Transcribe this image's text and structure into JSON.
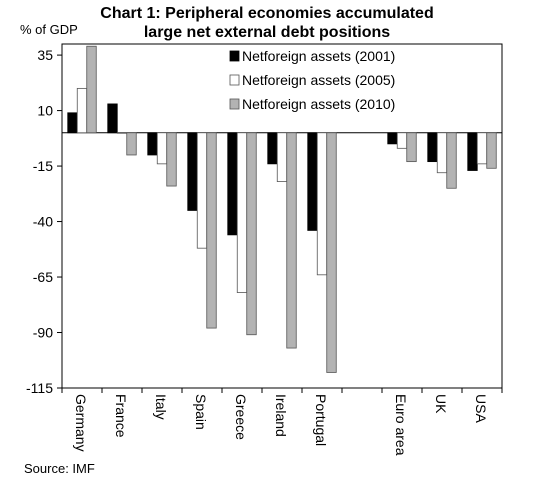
{
  "title_line1": "Chart 1: Peripheral economies accumulated",
  "title_line2": "large net external  debt positions",
  "y_unit": "% of GDP",
  "source": "Source: IMF",
  "chart_data": {
    "type": "bar",
    "title": "Chart 1: Peripheral economies accumulated large net external debt positions",
    "ylabel": "% of GDP",
    "xlabel": "",
    "ylim": [
      -115,
      40
    ],
    "yticks": [
      35,
      10,
      -15,
      -40,
      -65,
      -90,
      -115
    ],
    "grid": false,
    "legend_position": "top-right",
    "categories": [
      "Germany",
      "France",
      "Italy",
      "Spain",
      "Greece",
      "Ireland",
      "Portugal",
      "",
      "Euro area",
      "UK",
      "USA"
    ],
    "series": [
      {
        "name": "Netforeign assets (2001)",
        "color": "#000000",
        "values": [
          9,
          13,
          -10,
          -35,
          -46,
          -14,
          -44,
          null,
          -5,
          -13,
          -17
        ]
      },
      {
        "name": "Netforeign assets (2005)",
        "color": "#ffffff",
        "values": [
          20,
          0,
          -14,
          -52,
          -72,
          -22,
          -64,
          null,
          -7,
          -18,
          -14
        ]
      },
      {
        "name": "Netforeign assets (2010)",
        "color": "#b3b3b3",
        "values": [
          39,
          -10,
          -24,
          -88,
          -91,
          -97,
          -108,
          null,
          -13,
          -25,
          -16
        ]
      }
    ]
  }
}
